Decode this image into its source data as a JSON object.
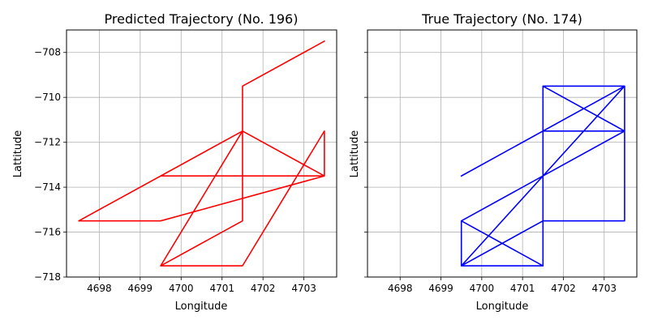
{
  "chart_data": [
    {
      "type": "line",
      "title": "Predicted Trajectory (No. 196)",
      "xlabel": "Longitude",
      "ylabel": "Lattitude",
      "xlim": [
        4697.2,
        4703.8
      ],
      "ylim": [
        -718,
        -707
      ],
      "xticks": [
        4698,
        4699,
        4700,
        4701,
        4702,
        4703
      ],
      "yticks": [
        -708,
        -710,
        -712,
        -714,
        -716,
        -718
      ],
      "show_ytick_labels": true,
      "grid": true,
      "series": [
        {
          "color": "#ff0000",
          "points": [
            [
              4703.5,
              -707.5
            ],
            [
              4701.5,
              -709.5
            ],
            [
              4701.5,
              -713.5
            ],
            [
              4699.5,
              -713.5
            ],
            [
              4703.5,
              -713.5
            ],
            [
              4701.5,
              -711.5
            ],
            [
              4697.5,
              -715.5
            ],
            [
              4699.5,
              -715.5
            ],
            [
              4703.5,
              -713.5
            ],
            [
              4703.5,
              -711.5
            ],
            [
              4701.5,
              -717.5
            ],
            [
              4699.5,
              -717.5
            ],
            [
              4701.5,
              -711.5
            ],
            [
              4701.5,
              -715.5
            ],
            [
              4699.5,
              -717.5
            ],
            [
              4701.5,
              -711.5
            ]
          ]
        }
      ]
    },
    {
      "type": "line",
      "title": "True Trajectory (No. 174)",
      "xlabel": "Longitude",
      "ylabel": "Lattitude",
      "xlim": [
        4697.2,
        4703.8
      ],
      "ylim": [
        -718,
        -707
      ],
      "xticks": [
        4698,
        4699,
        4700,
        4701,
        4702,
        4703
      ],
      "yticks": [
        -708,
        -710,
        -712,
        -714,
        -716,
        -718
      ],
      "show_ytick_labels": false,
      "grid": true,
      "series": [
        {
          "color": "#0000ff",
          "points": [
            [
              4699.5,
              -713.5
            ],
            [
              4703.5,
              -709.5
            ],
            [
              4701.5,
              -709.5
            ],
            [
              4701.5,
              -715.5
            ],
            [
              4703.5,
              -715.5
            ],
            [
              4703.5,
              -711.5
            ],
            [
              4701.5,
              -711.5
            ],
            [
              4701.5,
              -717.5
            ],
            [
              4699.5,
              -717.5
            ],
            [
              4699.5,
              -715.5
            ],
            [
              4701.5,
              -713.5
            ],
            [
              4703.5,
              -709.5
            ],
            [
              4703.5,
              -711.5
            ],
            [
              4701.5,
              -709.5
            ],
            [
              4701.5,
              -713.5
            ],
            [
              4699.5,
              -717.5
            ],
            [
              4701.5,
              -715.5
            ],
            [
              4701.5,
              -711.5
            ],
            [
              4703.5,
              -711.5
            ],
            [
              4701.5,
              -713.5
            ],
            [
              4699.5,
              -715.5
            ],
            [
              4701.5,
              -717.5
            ],
            [
              4699.5,
              -717.5
            ],
            [
              4703.5,
              -709.5
            ],
            [
              4703.5,
              -713.5
            ]
          ]
        }
      ]
    }
  ]
}
